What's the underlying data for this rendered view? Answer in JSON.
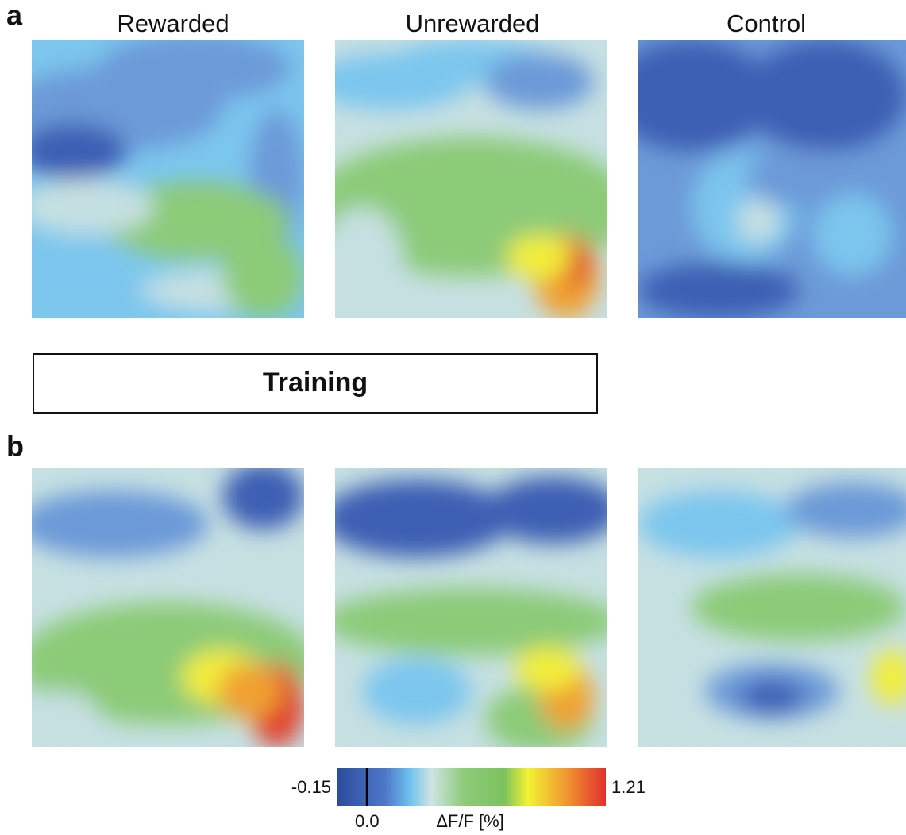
{
  "panel_a": {
    "letter": "a",
    "titles": [
      "Rewarded",
      "Unrewarded",
      "Control"
    ]
  },
  "training": "Training",
  "panel_b": {
    "letter": "b"
  },
  "colorbar": {
    "range": [
      -0.15,
      1.21
    ],
    "ticks": [
      {
        "value": 0,
        "label": "0.0"
      }
    ],
    "label": "ΔF/F [%]"
  }
}
